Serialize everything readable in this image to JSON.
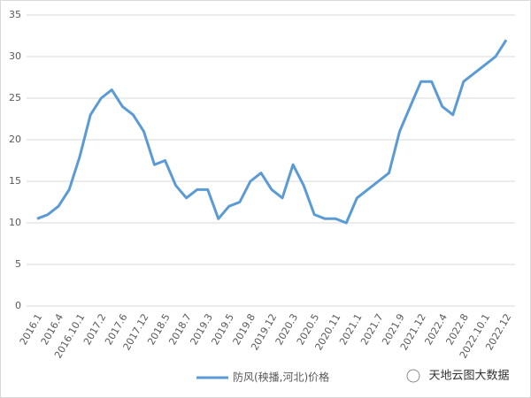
{
  "chart_data": {
    "type": "line",
    "categories": [
      "2016.1",
      null,
      "2016.4",
      null,
      "2016.10.1",
      null,
      "2017.2",
      null,
      "2017.6",
      null,
      "2017.12",
      null,
      "2018.5",
      null,
      "2018.7",
      null,
      "2019.3",
      null,
      "2019.5",
      null,
      "2019.8",
      null,
      "2019.12",
      null,
      "2020.3",
      null,
      "2020.5",
      null,
      "2020.11",
      null,
      "2021.1",
      null,
      "2021.7",
      null,
      "2021.9",
      null,
      "2021.12",
      null,
      "2022.4",
      null,
      "2022.8",
      null,
      "2022.10.1",
      null,
      "2022.12"
    ],
    "series": [
      {
        "name": "防风(秧播,河北)价格",
        "color": "#5b9bd5",
        "values": [
          10.5,
          11,
          12,
          14,
          18,
          23,
          25,
          26,
          24,
          23,
          21,
          17,
          17.5,
          14.5,
          13,
          14,
          14,
          10.5,
          12,
          12.5,
          15,
          16,
          14,
          13,
          17,
          14.5,
          11,
          10.5,
          10.5,
          10,
          13,
          14,
          15,
          16,
          21,
          24,
          27,
          27,
          24,
          23,
          27,
          28,
          29,
          30,
          32
        ]
      }
    ],
    "ylim": [
      0,
      35
    ],
    "yticks": [
      0,
      5,
      10,
      15,
      20,
      25,
      30,
      35
    ],
    "grid": true,
    "legend": "bottom",
    "annotations": [
      "天地云图大数据"
    ]
  }
}
